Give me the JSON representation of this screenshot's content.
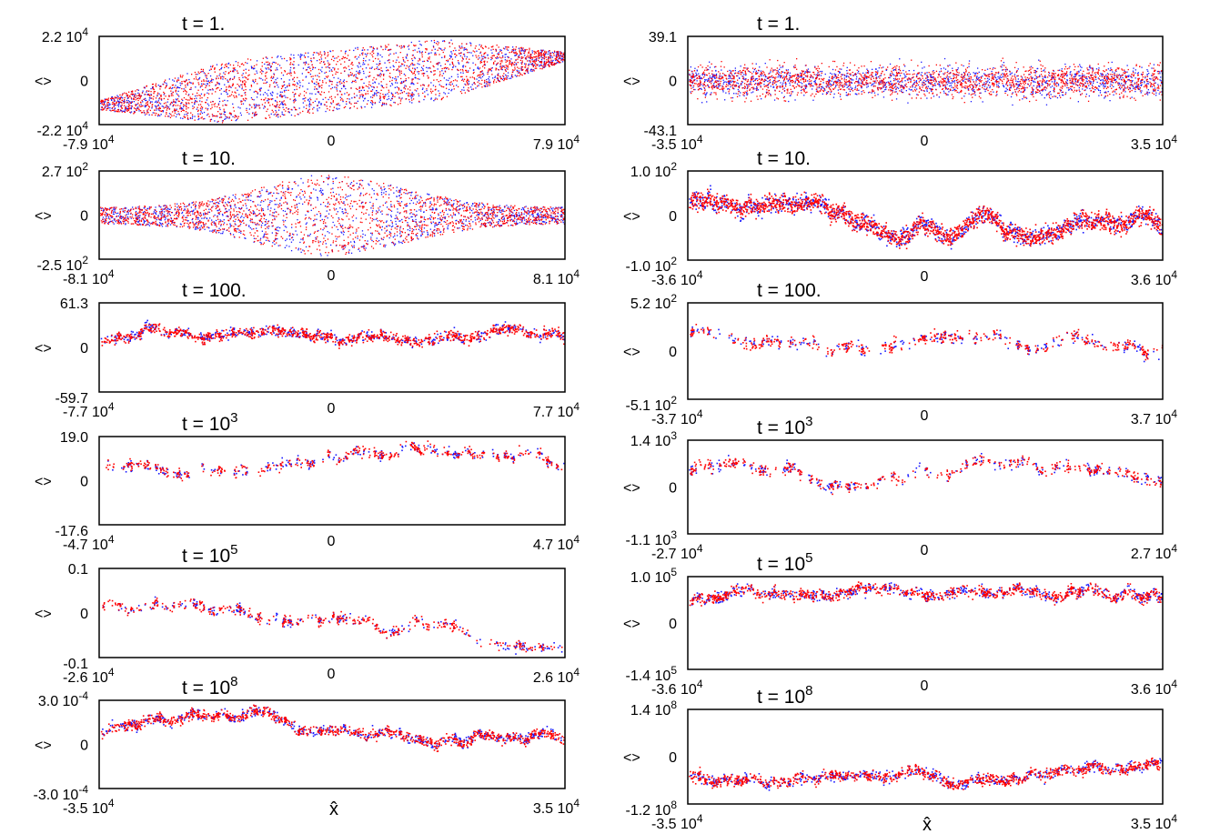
{
  "colors": {
    "series_a": "#1a1aff",
    "series_b": "#ff0000",
    "frame": "#000000"
  },
  "chart_data": [
    {
      "type": "scatter",
      "column": "left",
      "title_base": "t = 1.",
      "title_sup": "",
      "ylabel": "<>",
      "xlabel": "",
      "y_ticks": [
        "2.2 10^4",
        "0",
        "-2.2 10^4"
      ],
      "x_ticks": [
        "-7.9 10^4",
        "0",
        "7.9 10^4"
      ],
      "ylim": [
        -22000,
        22000
      ],
      "xlim": [
        -79000,
        79000
      ],
      "series": [
        {
          "color": "#1a1aff"
        },
        {
          "color": "#ff0000"
        }
      ]
    },
    {
      "type": "scatter",
      "column": "left",
      "title_base": "t = 10.",
      "title_sup": "",
      "ylabel": "<>",
      "xlabel": "",
      "y_ticks": [
        "2.7 10^2",
        "0",
        "-2.5 10^2"
      ],
      "x_ticks": [
        "-8.1 10^4",
        "0",
        "8.1 10^4"
      ],
      "ylim": [
        -250,
        270
      ],
      "xlim": [
        -81000,
        81000
      ],
      "series": [
        {
          "color": "#1a1aff"
        },
        {
          "color": "#ff0000"
        }
      ]
    },
    {
      "type": "scatter",
      "column": "left",
      "title_base": "t = 100.",
      "title_sup": "",
      "ylabel": "<>",
      "xlabel": "",
      "y_ticks": [
        "61.3",
        "0",
        "-59.7"
      ],
      "x_ticks": [
        "-7.7 10^4",
        "0",
        "7.7 10^4"
      ],
      "ylim": [
        -59.7,
        61.3
      ],
      "xlim": [
        -77000,
        77000
      ],
      "series": [
        {
          "color": "#1a1aff"
        },
        {
          "color": "#ff0000"
        }
      ]
    },
    {
      "type": "scatter",
      "column": "left",
      "title_base": "t = 10",
      "title_sup": "3",
      "ylabel": "<>",
      "xlabel": "",
      "y_ticks": [
        "19.0",
        "0",
        "-17.6"
      ],
      "x_ticks": [
        "-4.7 10^4",
        "0",
        "4.7 10^4"
      ],
      "ylim": [
        -17.6,
        19.0
      ],
      "xlim": [
        -47000,
        47000
      ],
      "series": [
        {
          "color": "#1a1aff"
        },
        {
          "color": "#ff0000"
        }
      ]
    },
    {
      "type": "scatter",
      "column": "left",
      "title_base": "t = 10",
      "title_sup": "5",
      "ylabel": "<>",
      "xlabel": "",
      "y_ticks": [
        "0.1",
        "0",
        "-0.1"
      ],
      "x_ticks": [
        "-2.6 10^4",
        "0",
        "2.6 10^4"
      ],
      "ylim": [
        -0.1,
        0.1
      ],
      "xlim": [
        -26000,
        26000
      ],
      "series": [
        {
          "color": "#1a1aff"
        },
        {
          "color": "#ff0000"
        }
      ]
    },
    {
      "type": "scatter",
      "column": "left",
      "title_base": "t = 10",
      "title_sup": "8",
      "ylabel": "<>",
      "xlabel": "x̂",
      "y_ticks": [
        "3.0 10^-4",
        "0",
        "-3.0 10^-4"
      ],
      "x_ticks": [
        "-3.5 10^4",
        "",
        "3.5 10^4"
      ],
      "ylim": [
        -0.0003,
        0.0003
      ],
      "xlim": [
        -35000,
        35000
      ],
      "series": [
        {
          "color": "#1a1aff"
        },
        {
          "color": "#ff0000"
        }
      ]
    },
    {
      "type": "scatter",
      "column": "right",
      "title_base": "t = 1.",
      "title_sup": "",
      "ylabel": "<>",
      "xlabel": "",
      "y_ticks": [
        "39.1",
        "0",
        "-43.1"
      ],
      "x_ticks": [
        "-3.5 10^4",
        "0",
        "3.5 10^4"
      ],
      "ylim": [
        -43.1,
        39.1
      ],
      "xlim": [
        -35000,
        35000
      ],
      "series": [
        {
          "color": "#1a1aff"
        },
        {
          "color": "#ff0000"
        }
      ]
    },
    {
      "type": "scatter",
      "column": "right",
      "title_base": "t = 10.",
      "title_sup": "",
      "ylabel": "<>",
      "xlabel": "",
      "y_ticks": [
        "1.0 10^2",
        "0",
        "-1.0 10^2"
      ],
      "x_ticks": [
        "-3.6 10^4",
        "0",
        "3.6 10^4"
      ],
      "ylim": [
        -100,
        100
      ],
      "xlim": [
        -36000,
        36000
      ],
      "series": [
        {
          "color": "#1a1aff"
        },
        {
          "color": "#ff0000"
        }
      ]
    },
    {
      "type": "scatter",
      "column": "right",
      "title_base": "t = 100.",
      "title_sup": "",
      "ylabel": "<>",
      "xlabel": "",
      "y_ticks": [
        "5.2 10^2",
        "0",
        "-5.1 10^2"
      ],
      "x_ticks": [
        "-3.7 10^4",
        "0",
        "3.7 10^4"
      ],
      "ylim": [
        -510,
        520
      ],
      "xlim": [
        -37000,
        37000
      ],
      "series": [
        {
          "color": "#1a1aff"
        },
        {
          "color": "#ff0000"
        }
      ]
    },
    {
      "type": "scatter",
      "column": "right",
      "title_base": "t = 10",
      "title_sup": "3",
      "ylabel": "<>",
      "xlabel": "",
      "y_ticks": [
        "1.4 10^3",
        "0",
        "-1.1 10^3"
      ],
      "x_ticks": [
        "-2.7 10^4",
        "0",
        "2.7 10^4"
      ],
      "ylim": [
        -1100,
        1400
      ],
      "xlim": [
        -27000,
        27000
      ],
      "series": [
        {
          "color": "#1a1aff"
        },
        {
          "color": "#ff0000"
        }
      ]
    },
    {
      "type": "scatter",
      "column": "right",
      "title_base": "t = 10",
      "title_sup": "5",
      "ylabel": "<>",
      "xlabel": "",
      "y_ticks": [
        "1.0 10^5",
        "0",
        "-1.4 10^5"
      ],
      "x_ticks": [
        "-3.6 10^4",
        "0",
        "3.6 10^4"
      ],
      "ylim": [
        -140000,
        100000
      ],
      "xlim": [
        -36000,
        36000
      ],
      "series": [
        {
          "color": "#1a1aff"
        },
        {
          "color": "#ff0000"
        }
      ]
    },
    {
      "type": "scatter",
      "column": "right",
      "title_base": "t = 10",
      "title_sup": "8",
      "ylabel": "<>",
      "xlabel": "x̂",
      "y_ticks": [
        "1.4 10^8",
        "0",
        "-1.2 10^8"
      ],
      "x_ticks": [
        "-3.5 10^4",
        "",
        "3.5 10^4"
      ],
      "ylim": [
        -120000000,
        140000000
      ],
      "xlim": [
        -35000,
        35000
      ],
      "series": [
        {
          "color": "#1a1aff"
        },
        {
          "color": "#ff0000"
        }
      ]
    }
  ]
}
